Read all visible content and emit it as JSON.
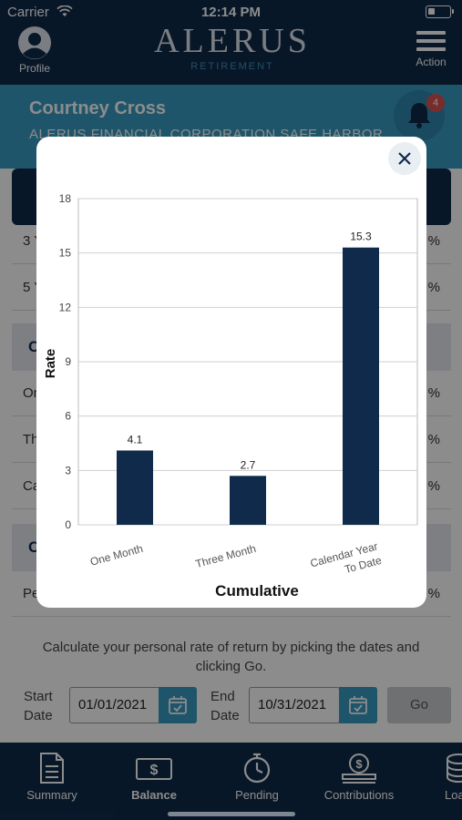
{
  "status_bar": {
    "carrier": "Carrier",
    "time": "12:14 PM"
  },
  "header": {
    "profile_label": "Profile",
    "brand": "ALERUS",
    "brand_sub": "RETIREMENT",
    "action_label": "Action"
  },
  "user": {
    "name": "Courtney Cross",
    "plan": "ALERUS FINANCIAL CORPORATION SAFE HARBOR",
    "notification_count": "4"
  },
  "background": {
    "rows_group1": [
      {
        "label": "3 Y",
        "value": "%"
      },
      {
        "label": "5 Y",
        "value": "%"
      }
    ],
    "section2_title": "C",
    "rows_group2": [
      {
        "label": "On",
        "value": "%"
      },
      {
        "label": "Th",
        "value": "%"
      },
      {
        "label": "Ca",
        "value": "%"
      }
    ],
    "section3_title": "C",
    "rows_group3": [
      {
        "label": "Pe",
        "value": "%"
      }
    ],
    "calc_text": "Calculate your personal rate of return by picking the dates and clicking Go.",
    "start_label": "Start\nDate",
    "start_value": "01/01/2021",
    "end_label": "End\nDate",
    "end_value": "10/31/2021",
    "go_label": "Go"
  },
  "nav": {
    "items": [
      {
        "label": "Summary",
        "icon": "document-icon"
      },
      {
        "label": "Balance",
        "icon": "dollar-bill-icon",
        "active": true
      },
      {
        "label": "Pending",
        "icon": "stopwatch-icon"
      },
      {
        "label": "Contributions",
        "icon": "coin-hand-icon"
      },
      {
        "label": "Loa",
        "icon": "coins-stack-icon"
      }
    ]
  },
  "chart_data": {
    "type": "bar",
    "categories": [
      "One Month",
      "Three Month",
      "Calendar Year To Date"
    ],
    "values": [
      4.1,
      2.7,
      15.3
    ],
    "data_labels": [
      "4.1",
      "2.7",
      "15.3"
    ],
    "xlabel": "Cumulative",
    "ylabel": "Rate",
    "ylim": [
      0,
      18
    ],
    "yticks": [
      0,
      3,
      6,
      9,
      12,
      15,
      18
    ],
    "grid": true,
    "bar_color": "#0f2a4a"
  }
}
